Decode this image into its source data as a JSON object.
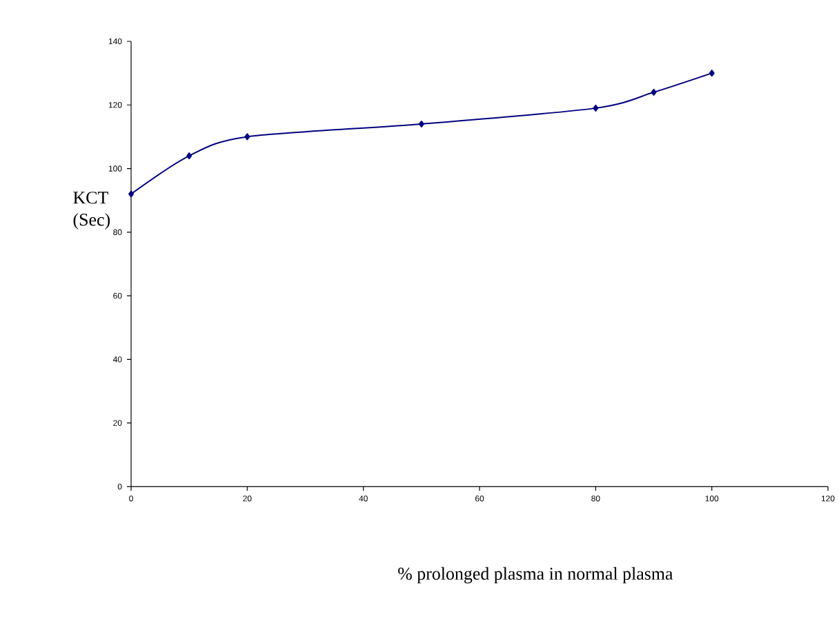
{
  "chart_data": {
    "type": "line",
    "xlabel": "% prolonged plasma in normal plasma",
    "ylabel": "KCT (Sec)",
    "x": [
      0,
      10,
      20,
      50,
      80,
      90,
      100
    ],
    "series": [
      {
        "color": "#000080",
        "values": [
          92,
          104,
          110,
          114,
          119,
          124,
          130
        ]
      }
    ],
    "xlim": [
      0,
      120
    ],
    "xticks": [
      0,
      20,
      40,
      60,
      80,
      100,
      120
    ],
    "ylim": [
      0,
      140
    ],
    "yticks": [
      0,
      20,
      40,
      60,
      80,
      100,
      120,
      140
    ],
    "grid": false,
    "marker": "diamond",
    "line_style": "solid"
  }
}
